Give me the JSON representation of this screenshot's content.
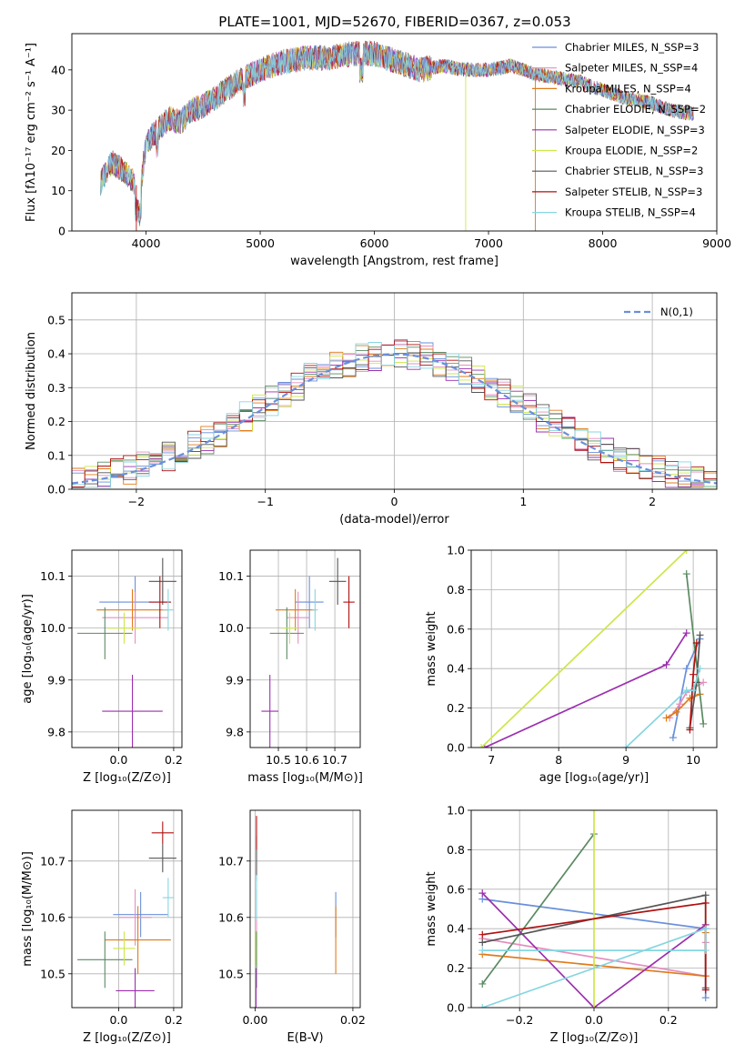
{
  "figure_title": "PLATE=1001, MJD=52670, FIBERID=0367, z=0.053",
  "series_colors": [
    "#6a8fdb",
    "#e58fbf",
    "#e07b1a",
    "#5a8a62",
    "#9b2fae",
    "#cde64a",
    "#555555",
    "#b01010",
    "#86d6e0"
  ],
  "chart_data": [
    {
      "id": "spectrum",
      "type": "line",
      "xlabel": "wavelength [Angstrom, rest frame]",
      "ylabel": "Flux [fλ10⁻¹⁷ erg cm⁻² s⁻¹ A⁻¹]",
      "xlim": [
        3350,
        9000
      ],
      "ylim": [
        0,
        49
      ],
      "xticks": [
        "4000",
        "5000",
        "6000",
        "7000",
        "8000",
        "9000"
      ],
      "yticks": [
        "0",
        "10",
        "20",
        "30",
        "40"
      ],
      "legend_position": "right",
      "series": [
        {
          "name": "Chabrier MILES, N_SSP=3"
        },
        {
          "name": "Salpeter MILES, N_SSP=4"
        },
        {
          "name": "Kroupa MILES, N_SSP=4"
        },
        {
          "name": "Chabrier ELODIE, N_SSP=2"
        },
        {
          "name": "Salpeter ELODIE, N_SSP=3"
        },
        {
          "name": "Kroupa ELODIE, N_SSP=2"
        },
        {
          "name": "Chabrier STELIB, N_SSP=3"
        },
        {
          "name": "Salpeter STELIB, N_SSP=3"
        },
        {
          "name": "Kroupa STELIB, N_SSP=4"
        }
      ],
      "continuum": {
        "x": [
          3600,
          3700,
          3800,
          3900,
          3950,
          4000,
          4100,
          4200,
          4300,
          4400,
          4500,
          4600,
          4800,
          5000,
          5200,
          5400,
          5600,
          5800,
          6000,
          6200,
          6400,
          6600,
          6800,
          7000,
          7200,
          7400,
          7600,
          7800,
          8000,
          8200,
          8400,
          8600,
          8800
        ],
        "y": [
          12,
          17,
          15,
          12,
          10,
          22,
          25,
          28,
          27,
          30,
          31,
          33,
          37,
          40,
          42,
          43,
          43,
          44,
          44,
          42,
          40,
          41,
          40,
          40,
          41,
          39,
          38,
          37,
          35,
          33,
          32,
          30,
          29
        ]
      }
    },
    {
      "id": "residuals",
      "type": "step-histogram",
      "xlabel": "(data-model)/error",
      "ylabel": "Normed distribution",
      "xlim": [
        -2.5,
        2.5
      ],
      "ylim": [
        0,
        0.58
      ],
      "xticks": [
        "−2",
        "−1",
        "0",
        "1",
        "2"
      ],
      "yticks": [
        "0.0",
        "0.1",
        "0.2",
        "0.3",
        "0.4",
        "0.5"
      ],
      "grid": true,
      "legend": "N(0,1)",
      "legend_position": "top-right",
      "bin_width": 0.1
    },
    {
      "id": "age-vs-Z",
      "type": "errorbar",
      "xlabel": "Z [log₁₀(Z/Z⊙)]",
      "ylabel": "age  [log₁₀(age/yr)]",
      "xlim": [
        -0.17,
        0.23
      ],
      "ylim": [
        9.77,
        10.15
      ],
      "xticks": [
        "0.0",
        "0.2"
      ],
      "yticks": [
        "9.8",
        "9.9",
        "10.0",
        "10.1"
      ],
      "grid": true,
      "points": [
        {
          "x": 0.06,
          "xerr": 0.13,
          "y": 10.05,
          "yerr": 0.05
        },
        {
          "x": 0.06,
          "xerr": 0.12,
          "y": 10.02,
          "yerr": 0.05
        },
        {
          "x": 0.05,
          "xerr": 0.13,
          "y": 10.035,
          "yerr": 0.04
        },
        {
          "x": -0.05,
          "xerr": 0.1,
          "y": 9.99,
          "yerr": 0.05
        },
        {
          "x": 0.05,
          "xerr": 0.11,
          "y": 9.84,
          "yerr": 0.07
        },
        {
          "x": 0.02,
          "xerr": 0.06,
          "y": 10.0,
          "yerr": 0.03
        },
        {
          "x": 0.16,
          "xerr": 0.05,
          "y": 10.09,
          "yerr": 0.045
        },
        {
          "x": 0.15,
          "xerr": 0.04,
          "y": 10.05,
          "yerr": 0.05
        },
        {
          "x": 0.18,
          "xerr": 0.02,
          "y": 10.035,
          "yerr": 0.04
        }
      ]
    },
    {
      "id": "age-vs-mass",
      "type": "errorbar",
      "xlabel": "mass [log₁₀(M/M⊙)]",
      "ylabel": "",
      "xlim": [
        10.4,
        10.79
      ],
      "ylim": [
        9.77,
        10.15
      ],
      "xticks": [
        "10.5",
        "10.6",
        "10.7"
      ],
      "yticks": [
        "9.8",
        "9.9",
        "10.0",
        "10.1"
      ],
      "grid": true,
      "points": [
        {
          "x": 10.61,
          "xerr": 0.05,
          "y": 10.05,
          "yerr": 0.05
        },
        {
          "x": 10.57,
          "xerr": 0.04,
          "y": 10.02,
          "yerr": 0.05
        },
        {
          "x": 10.56,
          "xerr": 0.07,
          "y": 10.035,
          "yerr": 0.04
        },
        {
          "x": 10.53,
          "xerr": 0.06,
          "y": 9.99,
          "yerr": 0.05
        },
        {
          "x": 10.47,
          "xerr": 0.03,
          "y": 9.84,
          "yerr": 0.07
        },
        {
          "x": 10.54,
          "xerr": 0.03,
          "y": 10.0,
          "yerr": 0.03
        },
        {
          "x": 10.71,
          "xerr": 0.03,
          "y": 10.09,
          "yerr": 0.045
        },
        {
          "x": 10.75,
          "xerr": 0.02,
          "y": 10.05,
          "yerr": 0.05
        },
        {
          "x": 10.63,
          "xerr": 0.01,
          "y": 10.035,
          "yerr": 0.04
        }
      ]
    },
    {
      "id": "weight-vs-age",
      "type": "line",
      "xlabel": "age  [log₁₀(age/yr)]",
      "ylabel": "mass weight",
      "xlim": [
        6.7,
        10.35
      ],
      "ylim": [
        0,
        1.0
      ],
      "xticks": [
        "7",
        "8",
        "9",
        "10"
      ],
      "yticks": [
        "0.0",
        "0.2",
        "0.4",
        "0.6",
        "0.8",
        "1.0"
      ],
      "grid": true,
      "series": [
        {
          "x": [
            9.7,
            9.9,
            10.1
          ],
          "y": [
            0.05,
            0.4,
            0.55
          ]
        },
        {
          "x": [
            9.65,
            9.8,
            9.9,
            10.15
          ],
          "y": [
            0.15,
            0.22,
            0.28,
            0.33
          ]
        },
        {
          "x": [
            9.6,
            9.75,
            9.95,
            10.1
          ],
          "y": [
            0.15,
            0.18,
            0.25,
            0.27
          ]
        },
        {
          "x": [
            9.9,
            10.15
          ],
          "y": [
            0.88,
            0.12
          ]
        },
        {
          "x": [
            6.9,
            9.6,
            9.9
          ],
          "y": [
            0.0,
            0.42,
            0.58
          ]
        },
        {
          "x": [
            6.85,
            9.9
          ],
          "y": [
            0.0,
            1.0
          ]
        },
        {
          "x": [
            9.95,
            10.05,
            10.1
          ],
          "y": [
            0.1,
            0.33,
            0.57
          ]
        },
        {
          "x": [
            9.95,
            10.0,
            10.05
          ],
          "y": [
            0.09,
            0.37,
            0.53
          ]
        },
        {
          "x": [
            9.0,
            9.9,
            10.0,
            10.1
          ],
          "y": [
            0.0,
            0.29,
            0.29,
            0.4
          ]
        }
      ]
    },
    {
      "id": "mass-vs-Z",
      "type": "errorbar",
      "xlabel": "Z [log₁₀(Z/Z⊙)]",
      "ylabel": "mass [log₁₀(M/M⊙)]",
      "xlim": [
        -0.17,
        0.23
      ],
      "ylim": [
        10.44,
        10.79
      ],
      "xticks": [
        "0.0",
        "0.2"
      ],
      "yticks": [
        "10.5",
        "10.6",
        "10.7"
      ],
      "grid": true,
      "points": [
        {
          "x": 0.08,
          "xerr": 0.1,
          "y": 10.605,
          "yerr": 0.04
        },
        {
          "x": 0.06,
          "xerr": 0.06,
          "y": 10.6,
          "yerr": 0.05
        },
        {
          "x": 0.07,
          "xerr": 0.12,
          "y": 10.56,
          "yerr": 0.06
        },
        {
          "x": -0.05,
          "xerr": 0.1,
          "y": 10.525,
          "yerr": 0.05
        },
        {
          "x": 0.06,
          "xerr": 0.07,
          "y": 10.47,
          "yerr": 0.04
        },
        {
          "x": 0.02,
          "xerr": 0.04,
          "y": 10.545,
          "yerr": 0.03
        },
        {
          "x": 0.16,
          "xerr": 0.05,
          "y": 10.705,
          "yerr": 0.025
        },
        {
          "x": 0.16,
          "xerr": 0.04,
          "y": 10.75,
          "yerr": 0.02
        },
        {
          "x": 0.18,
          "xerr": 0.02,
          "y": 10.635,
          "yerr": 0.035
        }
      ]
    },
    {
      "id": "mass-vs-ebv",
      "type": "errorbar",
      "xlabel": "E(B-V)",
      "ylabel": "",
      "xlim": [
        -0.001,
        0.0215
      ],
      "ylim": [
        10.44,
        10.79
      ],
      "xticks": [
        "0.00",
        "0.02"
      ],
      "yticks": [
        "10.5",
        "10.6",
        "10.7"
      ],
      "grid": true,
      "points": [
        {
          "x": 0.0165,
          "xerr": 0,
          "y": 10.605,
          "yerr": 0.04
        },
        {
          "x": 0.0003,
          "xerr": 0,
          "y": 10.6,
          "yerr": 0.05
        },
        {
          "x": 0.0165,
          "xerr": 0,
          "y": 10.56,
          "yerr": 0.06
        },
        {
          "x": 0.0003,
          "xerr": 0,
          "y": 10.525,
          "yerr": 0.05
        },
        {
          "x": 0.0002,
          "xerr": 0,
          "y": 10.47,
          "yerr": 0.04
        },
        {
          "x": 0.0001,
          "xerr": 0,
          "y": 10.545,
          "yerr": 0.03
        },
        {
          "x": 0.0003,
          "xerr": 0,
          "y": 10.705,
          "yerr": 0.04
        },
        {
          "x": 0.0003,
          "xerr": 0,
          "y": 10.75,
          "yerr": 0.03
        },
        {
          "x": 0.0003,
          "xerr": 0,
          "y": 10.635,
          "yerr": 0.04
        }
      ]
    },
    {
      "id": "weight-vs-Z",
      "type": "line",
      "xlabel": "Z [log₁₀(Z/Z⊙)]",
      "ylabel": "mass weight",
      "xlim": [
        -0.33,
        0.33
      ],
      "ylim": [
        0,
        1.0
      ],
      "xticks": [
        "−0.2",
        "0.0",
        "0.2"
      ],
      "yticks": [
        "0.0",
        "0.2",
        "0.4",
        "0.6",
        "0.8",
        "1.0"
      ],
      "grid": true,
      "series": [
        {
          "x": [
            -0.3,
            0.3,
            0.3
          ],
          "y": [
            0.55,
            0.4,
            0.05
          ]
        },
        {
          "x": [
            -0.3,
            0.3,
            0.3
          ],
          "y": [
            0.35,
            0.16,
            0.33
          ]
        },
        {
          "x": [
            -0.3,
            0.3,
            0.3
          ],
          "y": [
            0.27,
            0.16,
            0.38
          ]
        },
        {
          "x": [
            -0.3,
            0.0
          ],
          "y": [
            0.12,
            0.88
          ]
        },
        {
          "x": [
            -0.3,
            0.0,
            0.3
          ],
          "y": [
            0.58,
            0.0,
            0.42
          ]
        },
        {
          "x": [
            0.0,
            0.0
          ],
          "y": [
            0.0,
            1.0
          ]
        },
        {
          "x": [
            -0.3,
            0.3,
            0.3
          ],
          "y": [
            0.33,
            0.57,
            0.1
          ]
        },
        {
          "x": [
            -0.3,
            0.3,
            0.3
          ],
          "y": [
            0.37,
            0.53,
            0.09
          ]
        },
        {
          "x": [
            -0.3,
            0.3,
            0.3,
            -0.3
          ],
          "y": [
            0.0,
            0.4,
            0.29,
            0.29
          ]
        }
      ]
    }
  ]
}
